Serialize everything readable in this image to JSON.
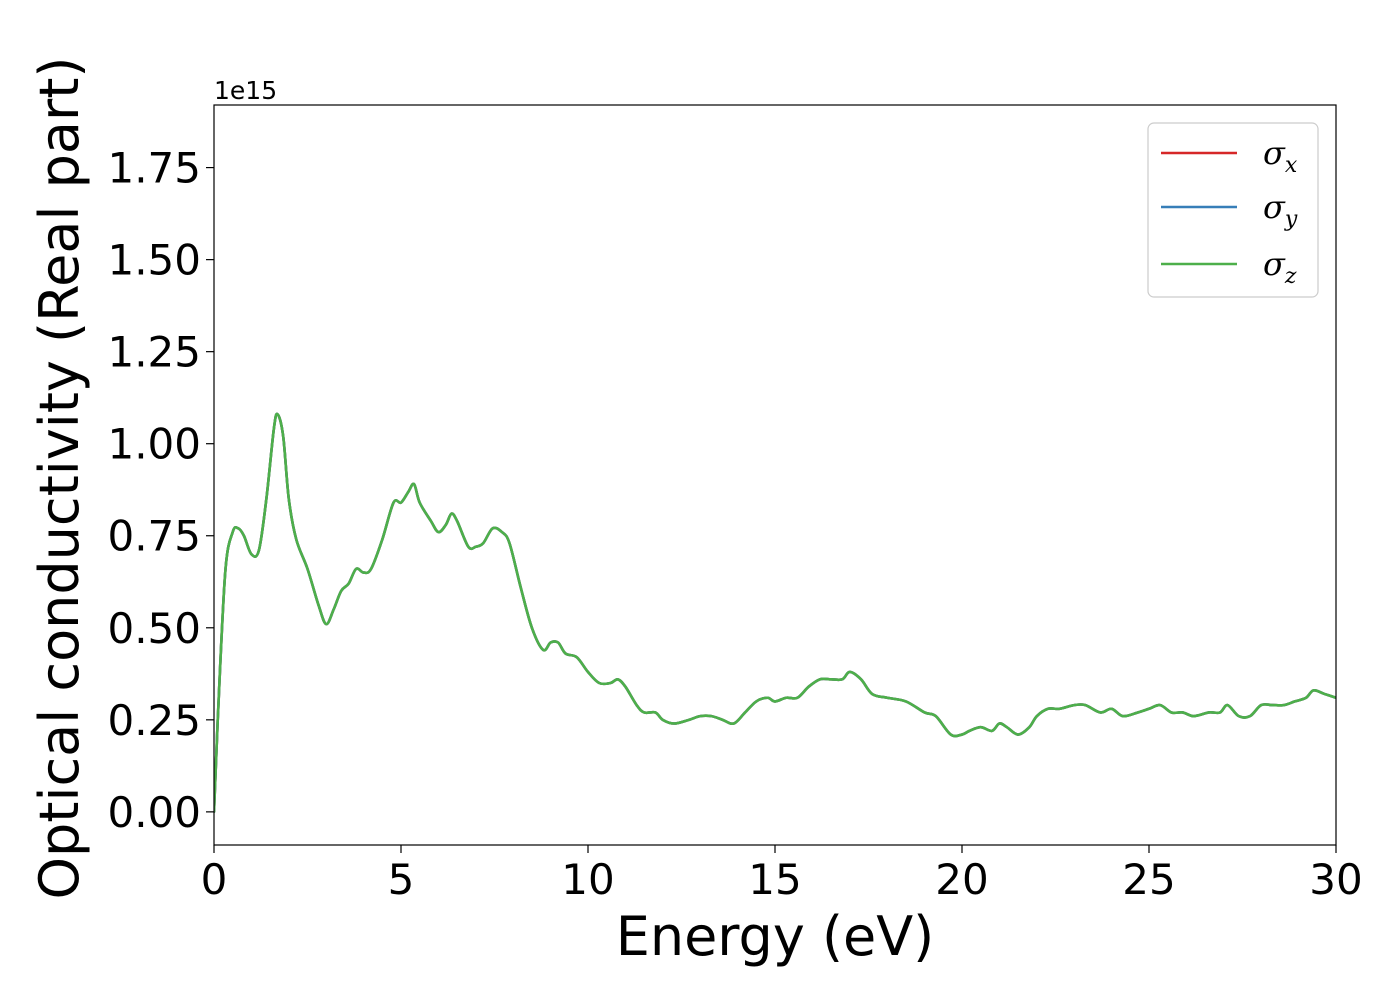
{
  "chart_data": {
    "type": "line",
    "xlabel": "Energy (eV)",
    "ylabel": "Optical conductivity (Real part)",
    "y_offset_text": "1e15",
    "xlim": [
      0,
      30
    ],
    "ylim": [
      -0.09,
      1.92
    ],
    "y_scale_factor": 1000000000000000.0,
    "grid": false,
    "legend_placement": "top-right",
    "x_ticks": [
      0,
      5,
      10,
      15,
      20,
      25,
      30
    ],
    "x_tick_labels": [
      "0",
      "5",
      "10",
      "15",
      "20",
      "25",
      "30"
    ],
    "y_ticks": [
      0,
      0.25,
      0.5,
      0.75,
      1.0,
      1.25,
      1.5,
      1.75
    ],
    "y_tick_labels": [
      "0.00",
      "0.25",
      "0.50",
      "0.75",
      "1.00",
      "1.25",
      "1.50",
      "1.75"
    ],
    "x": [
      0,
      0.1,
      0.3,
      0.5,
      0.65,
      0.8,
      1.0,
      1.2,
      1.4,
      1.6,
      1.7,
      1.85,
      2.0,
      2.2,
      2.5,
      2.8,
      3.0,
      3.2,
      3.4,
      3.6,
      3.8,
      4.0,
      4.2,
      4.5,
      4.8,
      5.0,
      5.2,
      5.35,
      5.5,
      5.8,
      6.0,
      6.2,
      6.35,
      6.5,
      6.8,
      7.0,
      7.2,
      7.45,
      7.7,
      7.9,
      8.2,
      8.5,
      8.8,
      9.0,
      9.2,
      9.4,
      9.7,
      10.0,
      10.3,
      10.6,
      10.8,
      11.0,
      11.3,
      11.5,
      11.8,
      12.0,
      12.3,
      12.7,
      13.0,
      13.3,
      13.6,
      13.9,
      14.2,
      14.5,
      14.8,
      15.0,
      15.3,
      15.6,
      15.9,
      16.2,
      16.5,
      16.8,
      17.0,
      17.3,
      17.6,
      18.0,
      18.5,
      19.0,
      19.3,
      19.7,
      20.0,
      20.2,
      20.5,
      20.8,
      21.0,
      21.2,
      21.5,
      21.8,
      22.0,
      22.3,
      22.6,
      23.0,
      23.3,
      23.7,
      24.0,
      24.3,
      24.7,
      25.0,
      25.3,
      25.6,
      25.9,
      26.2,
      26.6,
      26.9,
      27.1,
      27.4,
      27.7,
      28.0,
      28.3,
      28.6,
      28.9,
      29.2,
      29.4,
      29.7,
      30.0
    ],
    "series": [
      {
        "name": "σx",
        "label_base": "σ",
        "label_sub": "x",
        "color": "#d62728",
        "values": [
          0.0,
          0.25,
          0.65,
          0.76,
          0.77,
          0.75,
          0.7,
          0.71,
          0.85,
          1.04,
          1.08,
          1.02,
          0.85,
          0.74,
          0.66,
          0.56,
          0.51,
          0.55,
          0.6,
          0.62,
          0.66,
          0.65,
          0.66,
          0.74,
          0.84,
          0.84,
          0.87,
          0.89,
          0.84,
          0.79,
          0.76,
          0.78,
          0.81,
          0.79,
          0.72,
          0.72,
          0.73,
          0.77,
          0.76,
          0.73,
          0.61,
          0.5,
          0.44,
          0.46,
          0.46,
          0.43,
          0.42,
          0.38,
          0.35,
          0.35,
          0.36,
          0.34,
          0.29,
          0.27,
          0.27,
          0.25,
          0.24,
          0.25,
          0.26,
          0.26,
          0.25,
          0.24,
          0.27,
          0.3,
          0.31,
          0.3,
          0.31,
          0.31,
          0.34,
          0.36,
          0.36,
          0.36,
          0.38,
          0.36,
          0.32,
          0.31,
          0.3,
          0.27,
          0.26,
          0.21,
          0.21,
          0.22,
          0.23,
          0.22,
          0.24,
          0.23,
          0.21,
          0.23,
          0.26,
          0.28,
          0.28,
          0.29,
          0.29,
          0.27,
          0.28,
          0.26,
          0.27,
          0.28,
          0.29,
          0.27,
          0.27,
          0.26,
          0.27,
          0.27,
          0.29,
          0.26,
          0.26,
          0.29,
          0.29,
          0.29,
          0.3,
          0.31,
          0.33,
          0.32,
          0.31
        ]
      },
      {
        "name": "σy",
        "label_base": "σ",
        "label_sub": "y",
        "color": "#377eb8",
        "values": [
          0.0,
          0.25,
          0.65,
          0.76,
          0.77,
          0.75,
          0.7,
          0.71,
          0.85,
          1.04,
          1.08,
          1.02,
          0.85,
          0.74,
          0.66,
          0.56,
          0.51,
          0.55,
          0.6,
          0.62,
          0.66,
          0.65,
          0.66,
          0.74,
          0.84,
          0.84,
          0.87,
          0.89,
          0.84,
          0.79,
          0.76,
          0.78,
          0.81,
          0.79,
          0.72,
          0.72,
          0.73,
          0.77,
          0.76,
          0.73,
          0.61,
          0.5,
          0.44,
          0.46,
          0.46,
          0.43,
          0.42,
          0.38,
          0.35,
          0.35,
          0.36,
          0.34,
          0.29,
          0.27,
          0.27,
          0.25,
          0.24,
          0.25,
          0.26,
          0.26,
          0.25,
          0.24,
          0.27,
          0.3,
          0.31,
          0.3,
          0.31,
          0.31,
          0.34,
          0.36,
          0.36,
          0.36,
          0.38,
          0.36,
          0.32,
          0.31,
          0.3,
          0.27,
          0.26,
          0.21,
          0.21,
          0.22,
          0.23,
          0.22,
          0.24,
          0.23,
          0.21,
          0.23,
          0.26,
          0.28,
          0.28,
          0.29,
          0.29,
          0.27,
          0.28,
          0.26,
          0.27,
          0.28,
          0.29,
          0.27,
          0.27,
          0.26,
          0.27,
          0.27,
          0.29,
          0.26,
          0.26,
          0.29,
          0.29,
          0.29,
          0.3,
          0.31,
          0.33,
          0.32,
          0.31
        ]
      },
      {
        "name": "σz",
        "label_base": "σ",
        "label_sub": "z",
        "color": "#4daf4a",
        "values": [
          0.0,
          0.25,
          0.65,
          0.76,
          0.77,
          0.75,
          0.7,
          0.71,
          0.85,
          1.04,
          1.08,
          1.02,
          0.85,
          0.74,
          0.66,
          0.56,
          0.51,
          0.55,
          0.6,
          0.62,
          0.66,
          0.65,
          0.66,
          0.74,
          0.84,
          0.84,
          0.87,
          0.89,
          0.84,
          0.79,
          0.76,
          0.78,
          0.81,
          0.79,
          0.72,
          0.72,
          0.73,
          0.77,
          0.76,
          0.73,
          0.61,
          0.5,
          0.44,
          0.46,
          0.46,
          0.43,
          0.42,
          0.38,
          0.35,
          0.35,
          0.36,
          0.34,
          0.29,
          0.27,
          0.27,
          0.25,
          0.24,
          0.25,
          0.26,
          0.26,
          0.25,
          0.24,
          0.27,
          0.3,
          0.31,
          0.3,
          0.31,
          0.31,
          0.34,
          0.36,
          0.36,
          0.36,
          0.38,
          0.36,
          0.32,
          0.31,
          0.3,
          0.27,
          0.26,
          0.21,
          0.21,
          0.22,
          0.23,
          0.22,
          0.24,
          0.23,
          0.21,
          0.23,
          0.26,
          0.28,
          0.28,
          0.29,
          0.29,
          0.27,
          0.28,
          0.26,
          0.27,
          0.28,
          0.29,
          0.27,
          0.27,
          0.26,
          0.27,
          0.27,
          0.29,
          0.26,
          0.26,
          0.29,
          0.29,
          0.29,
          0.3,
          0.31,
          0.33,
          0.32,
          0.31
        ]
      }
    ]
  }
}
